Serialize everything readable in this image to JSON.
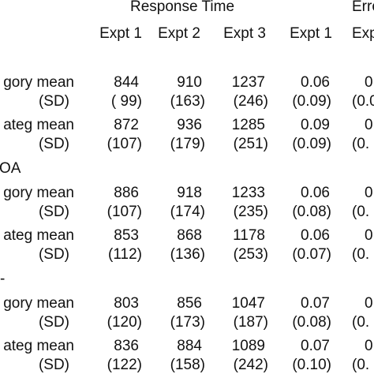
{
  "table": {
    "group_headers": {
      "response_time": "Response Time",
      "errors": "Erro"
    },
    "column_headers": [
      "Expt 1",
      "Expt 2",
      "Expt 3",
      "Expt 1",
      "Expt"
    ],
    "sections": [
      {
        "label": "",
        "rows": [
          {
            "label": "gory mean",
            "values": [
              "844",
              "910",
              "1237",
              "0.06",
              "0"
            ],
            "sd_label": "(SD)",
            "sd": [
              "( 99)",
              "(163)",
              "(246)",
              "(0.09)",
              "(0.0"
            ]
          },
          {
            "label": "ateg mean",
            "values": [
              "872",
              "936",
              "1285",
              "0.09",
              "0"
            ],
            "sd_label": "(SD)",
            "sd": [
              "(107)",
              "(179)",
              "(251)",
              "(0.09)",
              "(0."
            ]
          }
        ]
      },
      {
        "label": "OA",
        "rows": [
          {
            "label": "gory mean",
            "values": [
              "886",
              "918",
              "1233",
              "0.06",
              "0"
            ],
            "sd_label": "(SD)",
            "sd": [
              "(107)",
              "(174)",
              "(235)",
              "(0.08)",
              "(0."
            ]
          },
          {
            "label": "ateg mean",
            "values": [
              "853",
              "868",
              "1178",
              "0.06",
              "0"
            ],
            "sd_label": "(SD)",
            "sd": [
              "(112)",
              "(136)",
              "(253)",
              "(0.07)",
              "(0."
            ]
          }
        ]
      },
      {
        "label": "-",
        "rows": [
          {
            "label": "gory mean",
            "values": [
              "803",
              "856",
              "1047",
              "0.07",
              "0"
            ],
            "sd_label": "(SD)",
            "sd": [
              "(120)",
              "(173)",
              "(187)",
              "(0.08)",
              "(0."
            ]
          },
          {
            "label": "ateg mean",
            "values": [
              "836",
              "884",
              "1089",
              "0.07",
              "0"
            ],
            "sd_label": "(SD)",
            "sd": [
              "(122)",
              "(158)",
              "(242)",
              "(0.10)",
              "(0."
            ]
          }
        ]
      }
    ]
  }
}
